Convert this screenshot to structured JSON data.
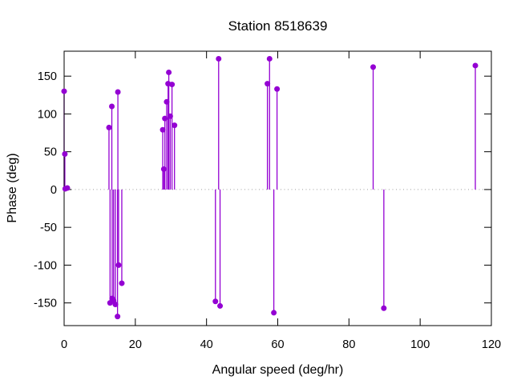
{
  "chart_data": {
    "type": "scatter",
    "style": "impulses-with-points (stem plot, gnuplot-like)",
    "title": "Station 8518639",
    "xlabel": "Angular speed (deg/hr)",
    "ylabel": "Phase (deg)",
    "xlim": [
      0,
      120
    ],
    "ylim": [
      -180,
      183
    ],
    "xticks": [
      0,
      20,
      40,
      60,
      80,
      100,
      120
    ],
    "yticks": [
      -150,
      -100,
      -50,
      0,
      50,
      100,
      150
    ],
    "grid": false,
    "legend": "none",
    "zero_line": "dotted",
    "colors": {
      "series": "#9400d3",
      "zero_line": "#9e9e9e",
      "axis": "#000000",
      "background": "#ffffff"
    },
    "points": [
      [
        0,
        130
      ],
      [
        0.2,
        47
      ],
      [
        0.3,
        1
      ],
      [
        0.9,
        2
      ],
      [
        12.6,
        82
      ],
      [
        12.9,
        -150
      ],
      [
        13.4,
        110
      ],
      [
        13.5,
        -144
      ],
      [
        13.9,
        -147
      ],
      [
        14.4,
        -152
      ],
      [
        15.0,
        -168
      ],
      [
        15.1,
        129
      ],
      [
        15.3,
        -100
      ],
      [
        16.2,
        -124
      ],
      [
        27.7,
        79
      ],
      [
        28.0,
        27
      ],
      [
        28.3,
        94
      ],
      [
        28.8,
        116
      ],
      [
        29.2,
        140
      ],
      [
        29.4,
        155
      ],
      [
        29.8,
        97
      ],
      [
        30.3,
        139
      ],
      [
        31.0,
        85
      ],
      [
        42.5,
        -148
      ],
      [
        43.4,
        173
      ],
      [
        43.8,
        -154
      ],
      [
        57.1,
        140
      ],
      [
        57.7,
        173
      ],
      [
        58.9,
        -163
      ],
      [
        59.8,
        133
      ],
      [
        86.8,
        162
      ],
      [
        89.8,
        -157
      ],
      [
        115.5,
        164
      ]
    ]
  }
}
